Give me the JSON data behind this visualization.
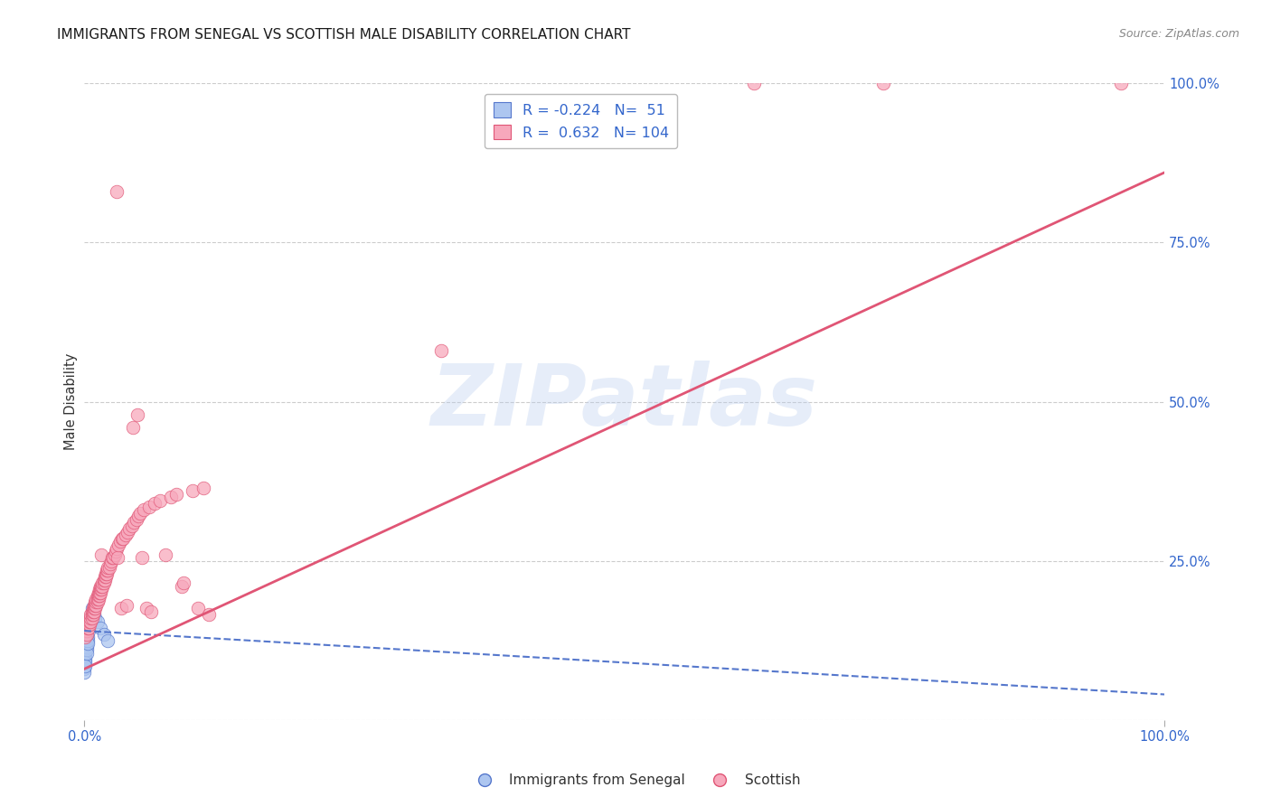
{
  "title": "IMMIGRANTS FROM SENEGAL VS SCOTTISH MALE DISABILITY CORRELATION CHART",
  "source": "Source: ZipAtlas.com",
  "ylabel": "Male Disability",
  "ylabel_right_labels": [
    "100.0%",
    "75.0%",
    "50.0%",
    "25.0%"
  ],
  "ylabel_right_values": [
    1.0,
    0.75,
    0.5,
    0.25
  ],
  "legend_blue_R": "-0.224",
  "legend_blue_N": "51",
  "legend_pink_R": "0.632",
  "legend_pink_N": "104",
  "blue_color": "#adc6f0",
  "pink_color": "#f7a8bc",
  "blue_line_color": "#5577cc",
  "pink_line_color": "#e05575",
  "blue_regression": [
    0.0,
    0.14,
    1.0,
    0.04
  ],
  "pink_regression": [
    0.0,
    0.08,
    1.0,
    0.86
  ],
  "blue_scatter": [
    [
      0.0,
      0.155
    ],
    [
      0.0,
      0.14
    ],
    [
      0.0,
      0.135
    ],
    [
      0.0,
      0.13
    ],
    [
      0.0,
      0.125
    ],
    [
      0.0,
      0.12
    ],
    [
      0.0,
      0.115
    ],
    [
      0.0,
      0.11
    ],
    [
      0.0,
      0.105
    ],
    [
      0.0,
      0.1
    ],
    [
      0.0,
      0.095
    ],
    [
      0.0,
      0.09
    ],
    [
      0.0,
      0.085
    ],
    [
      0.0,
      0.08
    ],
    [
      0.0,
      0.145
    ],
    [
      0.0,
      0.075
    ],
    [
      0.001,
      0.13
    ],
    [
      0.001,
      0.125
    ],
    [
      0.001,
      0.12
    ],
    [
      0.001,
      0.115
    ],
    [
      0.001,
      0.11
    ],
    [
      0.001,
      0.105
    ],
    [
      0.001,
      0.1
    ],
    [
      0.001,
      0.095
    ],
    [
      0.001,
      0.09
    ],
    [
      0.001,
      0.085
    ],
    [
      0.001,
      0.155
    ],
    [
      0.001,
      0.145
    ],
    [
      0.002,
      0.13
    ],
    [
      0.002,
      0.125
    ],
    [
      0.002,
      0.12
    ],
    [
      0.002,
      0.115
    ],
    [
      0.002,
      0.11
    ],
    [
      0.002,
      0.105
    ],
    [
      0.003,
      0.13
    ],
    [
      0.003,
      0.125
    ],
    [
      0.003,
      0.12
    ],
    [
      0.004,
      0.145
    ],
    [
      0.004,
      0.14
    ],
    [
      0.005,
      0.15
    ],
    [
      0.006,
      0.155
    ],
    [
      0.006,
      0.16
    ],
    [
      0.007,
      0.17
    ],
    [
      0.007,
      0.175
    ],
    [
      0.009,
      0.165
    ],
    [
      0.01,
      0.16
    ],
    [
      0.012,
      0.155
    ],
    [
      0.015,
      0.145
    ],
    [
      0.018,
      0.135
    ],
    [
      0.022,
      0.125
    ]
  ],
  "pink_scatter": [
    [
      0.001,
      0.13
    ],
    [
      0.002,
      0.14
    ],
    [
      0.002,
      0.135
    ],
    [
      0.003,
      0.145
    ],
    [
      0.003,
      0.15
    ],
    [
      0.003,
      0.155
    ],
    [
      0.004,
      0.145
    ],
    [
      0.004,
      0.15
    ],
    [
      0.004,
      0.155
    ],
    [
      0.005,
      0.15
    ],
    [
      0.005,
      0.16
    ],
    [
      0.005,
      0.155
    ],
    [
      0.006,
      0.155
    ],
    [
      0.006,
      0.16
    ],
    [
      0.006,
      0.165
    ],
    [
      0.007,
      0.16
    ],
    [
      0.007,
      0.165
    ],
    [
      0.007,
      0.17
    ],
    [
      0.008,
      0.165
    ],
    [
      0.008,
      0.17
    ],
    [
      0.008,
      0.175
    ],
    [
      0.009,
      0.17
    ],
    [
      0.009,
      0.175
    ],
    [
      0.009,
      0.18
    ],
    [
      0.01,
      0.175
    ],
    [
      0.01,
      0.18
    ],
    [
      0.01,
      0.185
    ],
    [
      0.011,
      0.18
    ],
    [
      0.011,
      0.185
    ],
    [
      0.011,
      0.19
    ],
    [
      0.012,
      0.185
    ],
    [
      0.012,
      0.19
    ],
    [
      0.012,
      0.195
    ],
    [
      0.013,
      0.19
    ],
    [
      0.013,
      0.195
    ],
    [
      0.013,
      0.2
    ],
    [
      0.014,
      0.195
    ],
    [
      0.014,
      0.2
    ],
    [
      0.014,
      0.205
    ],
    [
      0.015,
      0.2
    ],
    [
      0.015,
      0.205
    ],
    [
      0.015,
      0.21
    ],
    [
      0.016,
      0.205
    ],
    [
      0.016,
      0.21
    ],
    [
      0.016,
      0.26
    ],
    [
      0.017,
      0.21
    ],
    [
      0.017,
      0.215
    ],
    [
      0.018,
      0.215
    ],
    [
      0.018,
      0.22
    ],
    [
      0.019,
      0.22
    ],
    [
      0.019,
      0.225
    ],
    [
      0.02,
      0.225
    ],
    [
      0.02,
      0.23
    ],
    [
      0.021,
      0.23
    ],
    [
      0.021,
      0.235
    ],
    [
      0.022,
      0.235
    ],
    [
      0.022,
      0.24
    ],
    [
      0.023,
      0.24
    ],
    [
      0.024,
      0.245
    ],
    [
      0.025,
      0.25
    ],
    [
      0.026,
      0.255
    ],
    [
      0.027,
      0.255
    ],
    [
      0.028,
      0.26
    ],
    [
      0.029,
      0.265
    ],
    [
      0.03,
      0.27
    ],
    [
      0.031,
      0.255
    ],
    [
      0.032,
      0.275
    ],
    [
      0.033,
      0.28
    ],
    [
      0.034,
      0.175
    ],
    [
      0.035,
      0.285
    ],
    [
      0.036,
      0.285
    ],
    [
      0.038,
      0.29
    ],
    [
      0.039,
      0.18
    ],
    [
      0.04,
      0.295
    ],
    [
      0.042,
      0.3
    ],
    [
      0.044,
      0.305
    ],
    [
      0.045,
      0.46
    ],
    [
      0.046,
      0.31
    ],
    [
      0.048,
      0.315
    ],
    [
      0.049,
      0.48
    ],
    [
      0.05,
      0.32
    ],
    [
      0.052,
      0.325
    ],
    [
      0.053,
      0.255
    ],
    [
      0.055,
      0.33
    ],
    [
      0.058,
      0.175
    ],
    [
      0.06,
      0.335
    ],
    [
      0.062,
      0.17
    ],
    [
      0.065,
      0.34
    ],
    [
      0.07,
      0.345
    ],
    [
      0.075,
      0.26
    ],
    [
      0.08,
      0.35
    ],
    [
      0.085,
      0.355
    ],
    [
      0.09,
      0.21
    ],
    [
      0.092,
      0.215
    ],
    [
      0.1,
      0.36
    ],
    [
      0.105,
      0.175
    ],
    [
      0.11,
      0.365
    ],
    [
      0.115,
      0.165
    ],
    [
      0.03,
      0.83
    ],
    [
      0.33,
      0.58
    ],
    [
      0.62,
      1.0
    ],
    [
      0.74,
      1.0
    ],
    [
      0.96,
      1.0
    ]
  ],
  "watermark": "ZIPatlas",
  "background_color": "#ffffff",
  "grid_color": "#cccccc",
  "xlim": [
    0.0,
    1.0
  ],
  "ylim": [
    0.0,
    1.0
  ]
}
